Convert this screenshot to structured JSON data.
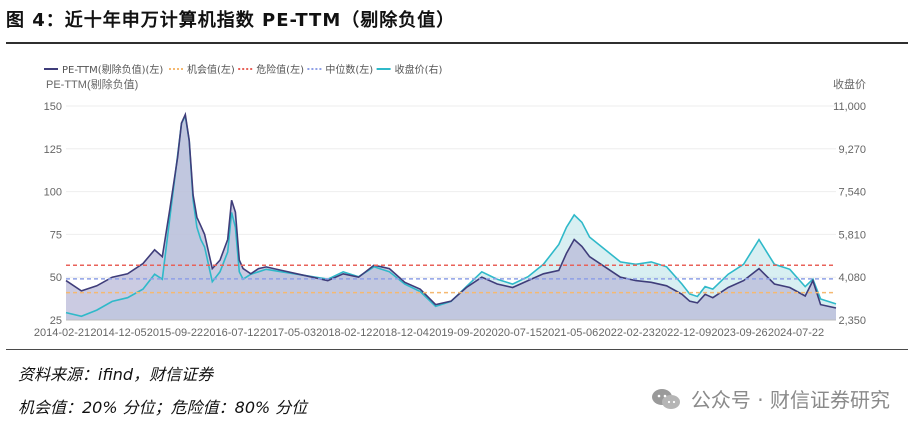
{
  "figure": {
    "title": "图 4：近十年申万计算机指数 PE-TTM（剔除负值）",
    "source": "资料来源：ifind，财信证券",
    "note": "机会值：20% 分位；危险值：80% 分位",
    "watermark": "公众号 · 财信证券研究",
    "watermark_icon": "wechat-icon"
  },
  "chart_data": {
    "type": "line",
    "title": "近十年申万计算机指数 PE-TTM（剔除负值）",
    "ylabel_left": "PE-TTM(剔除负值)",
    "ylabel_right": "收盘价",
    "left_axis": {
      "ylim": [
        25,
        150
      ],
      "ticks": [
        "150",
        "125",
        "100",
        "75",
        "50",
        "25"
      ],
      "tick_values": [
        150,
        125,
        100,
        75,
        50,
        25
      ]
    },
    "right_axis": {
      "ylim": [
        2350,
        11000
      ],
      "ticks": [
        "11,000",
        "9,270",
        "7,540",
        "5,810",
        "4,080",
        "2,350"
      ],
      "tick_values": [
        11000,
        9270,
        7540,
        5810,
        4080,
        2350
      ]
    },
    "x_ticks": [
      "2014-02-21",
      "2014-12-05",
      "2015-09-22",
      "2016-07-12",
      "2017-05-03",
      "2018-02-12",
      "2018-12-04",
      "2019-09-20",
      "2020-07-15",
      "2021-05-06",
      "2022-02-23",
      "2022-12-09",
      "2023-09-26",
      "2024-07-22"
    ],
    "legend_position": "top-left",
    "colors": {
      "pe": "#3f3d7a",
      "pe_fill": "#b9b9d8",
      "opportunity": "#f5b971",
      "danger": "#e8625a",
      "median": "#8fa0e6",
      "price": "#2fb9c9",
      "price_fill": "#a9dbe3"
    },
    "horizontal_lines": [
      {
        "name": "机会值(左)",
        "value": 41
      },
      {
        "name": "危险值(左)",
        "value": 57
      },
      {
        "name": "中位数(左)",
        "value": 49
      }
    ],
    "series": [
      {
        "name": "PE-TTM(剔除负值)(左)",
        "axis": "left",
        "x": [
          0,
          0.02,
          0.04,
          0.06,
          0.08,
          0.1,
          0.115,
          0.125,
          0.135,
          0.145,
          0.15,
          0.155,
          0.16,
          0.165,
          0.17,
          0.175,
          0.18,
          0.19,
          0.2,
          0.21,
          0.215,
          0.22,
          0.225,
          0.23,
          0.24,
          0.25,
          0.26,
          0.28,
          0.3,
          0.32,
          0.34,
          0.36,
          0.38,
          0.4,
          0.42,
          0.44,
          0.46,
          0.48,
          0.5,
          0.52,
          0.54,
          0.56,
          0.58,
          0.6,
          0.62,
          0.64,
          0.65,
          0.66,
          0.67,
          0.68,
          0.7,
          0.72,
          0.74,
          0.76,
          0.78,
          0.8,
          0.81,
          0.82,
          0.83,
          0.84,
          0.86,
          0.88,
          0.9,
          0.92,
          0.94,
          0.96,
          0.97,
          0.98,
          1.0
        ],
        "values": [
          48,
          42,
          45,
          50,
          52,
          58,
          66,
          62,
          90,
          120,
          140,
          145,
          130,
          98,
          85,
          80,
          75,
          55,
          60,
          72,
          95,
          88,
          60,
          55,
          52,
          55,
          56,
          54,
          52,
          50,
          48,
          52,
          50,
          57,
          55,
          47,
          43,
          34,
          36,
          44,
          50,
          46,
          44,
          48,
          52,
          54,
          64,
          72,
          68,
          62,
          56,
          50,
          48,
          47,
          45,
          40,
          36,
          35,
          40,
          38,
          44,
          48,
          55,
          46,
          44,
          39,
          48,
          34,
          32
        ]
      },
      {
        "name": "收盘价(右)",
        "axis": "right",
        "x": [
          0,
          0.02,
          0.04,
          0.06,
          0.08,
          0.1,
          0.115,
          0.125,
          0.135,
          0.145,
          0.15,
          0.155,
          0.16,
          0.165,
          0.17,
          0.175,
          0.18,
          0.19,
          0.2,
          0.21,
          0.215,
          0.22,
          0.225,
          0.23,
          0.24,
          0.25,
          0.26,
          0.28,
          0.3,
          0.32,
          0.34,
          0.36,
          0.38,
          0.4,
          0.42,
          0.44,
          0.46,
          0.48,
          0.5,
          0.52,
          0.54,
          0.56,
          0.58,
          0.6,
          0.62,
          0.64,
          0.65,
          0.66,
          0.67,
          0.68,
          0.7,
          0.72,
          0.74,
          0.76,
          0.78,
          0.8,
          0.81,
          0.82,
          0.83,
          0.84,
          0.86,
          0.88,
          0.9,
          0.92,
          0.94,
          0.96,
          0.97,
          0.98,
          1.0
        ],
        "values": [
          2650,
          2500,
          2750,
          3100,
          3250,
          3600,
          4200,
          4000,
          6500,
          9000,
          10300,
          10600,
          9600,
          7200,
          6100,
          5600,
          5300,
          3900,
          4300,
          5100,
          6700,
          6100,
          4300,
          4000,
          4200,
          4300,
          4400,
          4300,
          4200,
          4100,
          4000,
          4300,
          4100,
          4500,
          4300,
          3800,
          3500,
          2900,
          3100,
          3700,
          4300,
          4000,
          3800,
          4100,
          4600,
          5400,
          6100,
          6600,
          6300,
          5700,
          5200,
          4700,
          4600,
          4700,
          4500,
          3800,
          3400,
          3300,
          3700,
          3600,
          4200,
          4600,
          5600,
          4600,
          4400,
          3700,
          4000,
          3200,
          3000
        ]
      }
    ]
  },
  "legend": [
    {
      "key": "pe",
      "label": "PE-TTM(剔除负值)(左)"
    },
    {
      "key": "opportunity",
      "label": "机会值(左)"
    },
    {
      "key": "danger",
      "label": "危险值(左)"
    },
    {
      "key": "median",
      "label": "中位数(左)"
    },
    {
      "key": "price",
      "label": "收盘价(右)"
    }
  ]
}
